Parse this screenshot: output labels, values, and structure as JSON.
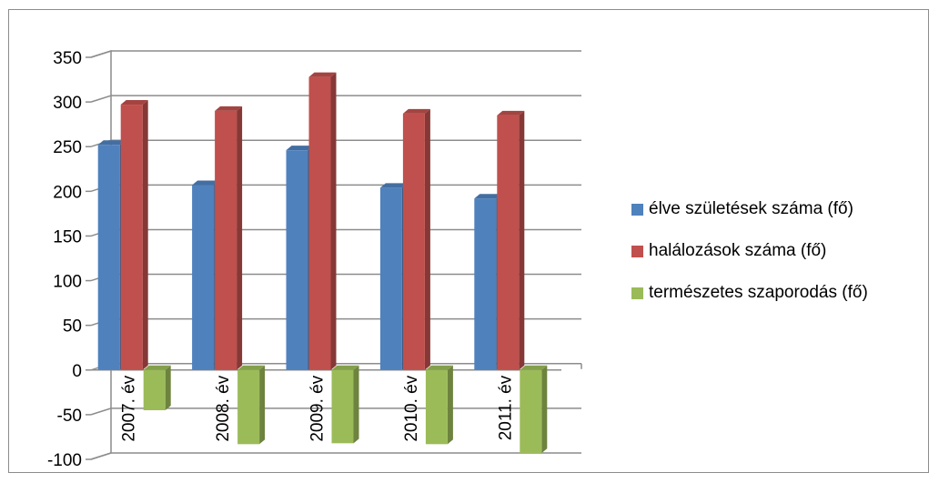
{
  "chart_data": {
    "type": "bar",
    "categories": [
      "2007. év",
      "2008. év",
      "2009. év",
      "2010. év",
      "2011. év"
    ],
    "series": [
      {
        "name": "élve születések száma (fő)",
        "color": "#4f81bd",
        "values": [
          252,
          207,
          246,
          204,
          192
        ]
      },
      {
        "name": "halálozások száma (fő)",
        "color": "#c0504d",
        "values": [
          297,
          290,
          328,
          287,
          285
        ]
      },
      {
        "name": "természetes szaporodás (fő)",
        "color": "#9bbb59",
        "values": [
          -45,
          -83,
          -82,
          -83,
          -93
        ]
      }
    ],
    "yticks": [
      "350",
      "300",
      "250",
      "200",
      "150",
      "100",
      "50",
      "0",
      "-50",
      "-100"
    ],
    "ylim": [
      -100,
      350
    ],
    "grid": true,
    "legend_position": "right",
    "three_d": true
  }
}
